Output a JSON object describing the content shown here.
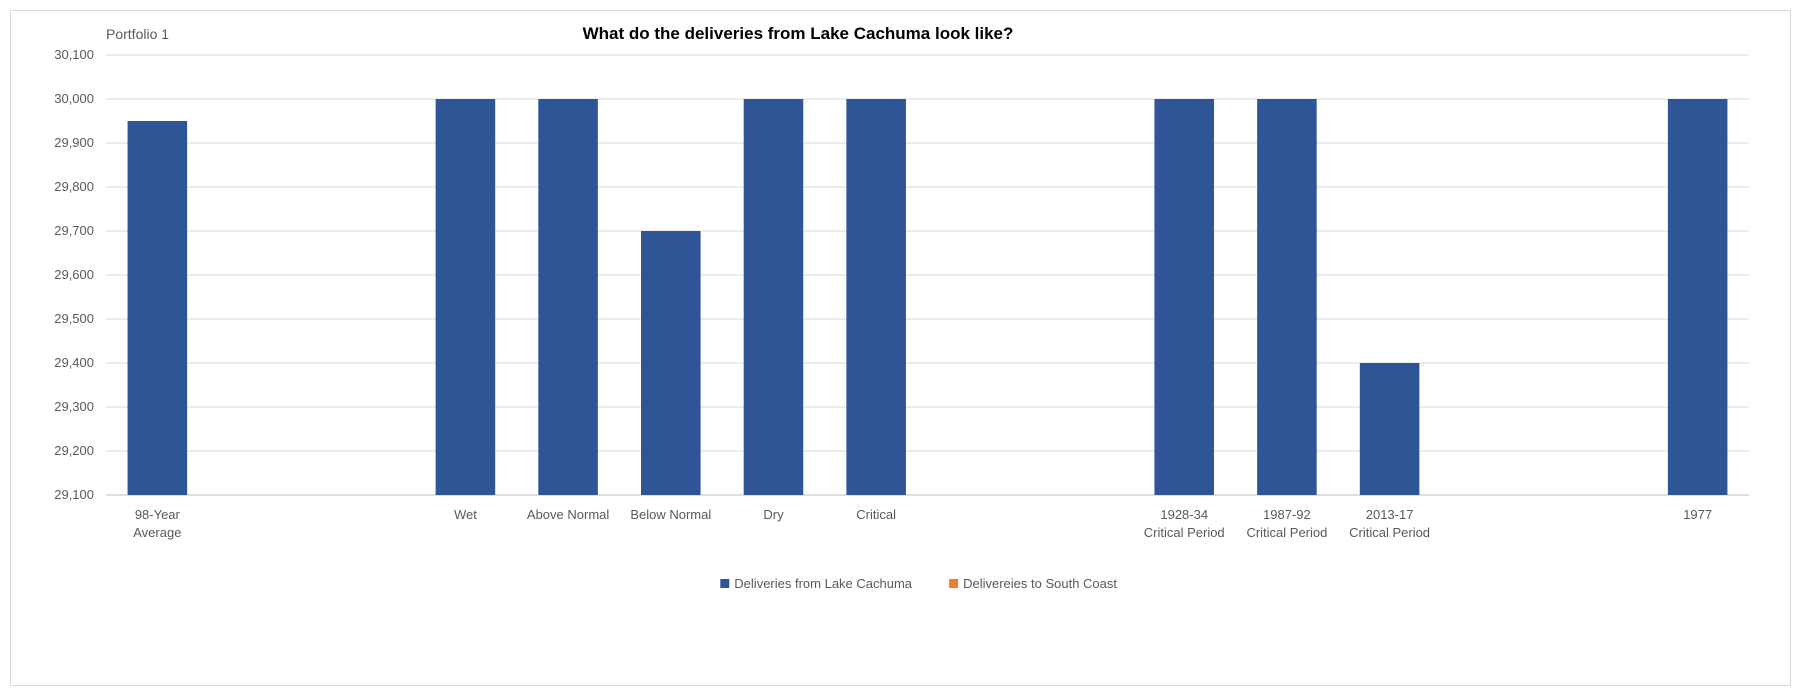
{
  "portfolio_label": "Portfolio 1",
  "chart_data": {
    "type": "bar",
    "title": "What do the deliveries from Lake Cachuma look like?",
    "xlabel": "",
    "ylabel": "",
    "ylim": [
      29100,
      30100
    ],
    "ytick_step": 100,
    "ytick_labels": [
      "29,100",
      "29,200",
      "29,300",
      "29,400",
      "29,500",
      "29,600",
      "29,700",
      "29,800",
      "29,900",
      "30,000",
      "30,100"
    ],
    "grid": true,
    "legend_position": "bottom",
    "categories": [
      [
        "98-Year",
        "Average"
      ],
      [
        ""
      ],
      [
        ""
      ],
      [
        "Wet"
      ],
      [
        "Above Normal"
      ],
      [
        "Below Normal"
      ],
      [
        "Dry"
      ],
      [
        "Critical"
      ],
      [
        ""
      ],
      [
        ""
      ],
      [
        "1928-34",
        "Critical Period"
      ],
      [
        "1987-92",
        "Critical Period"
      ],
      [
        "2013-17",
        "Critical Period"
      ],
      [
        ""
      ],
      [
        ""
      ],
      [
        "1977"
      ]
    ],
    "series": [
      {
        "name": "Deliveries from Lake Cachuma",
        "color": "#2f5597",
        "values": [
          29950,
          null,
          null,
          30000,
          30000,
          29700,
          30000,
          30000,
          null,
          null,
          30000,
          30000,
          29400,
          null,
          null,
          30000
        ]
      },
      {
        "name": "Delivereies to South Coast",
        "color": "#ed7d31",
        "values": [
          null,
          null,
          null,
          null,
          null,
          null,
          null,
          null,
          null,
          null,
          null,
          null,
          null,
          null,
          null,
          null
        ]
      }
    ]
  }
}
